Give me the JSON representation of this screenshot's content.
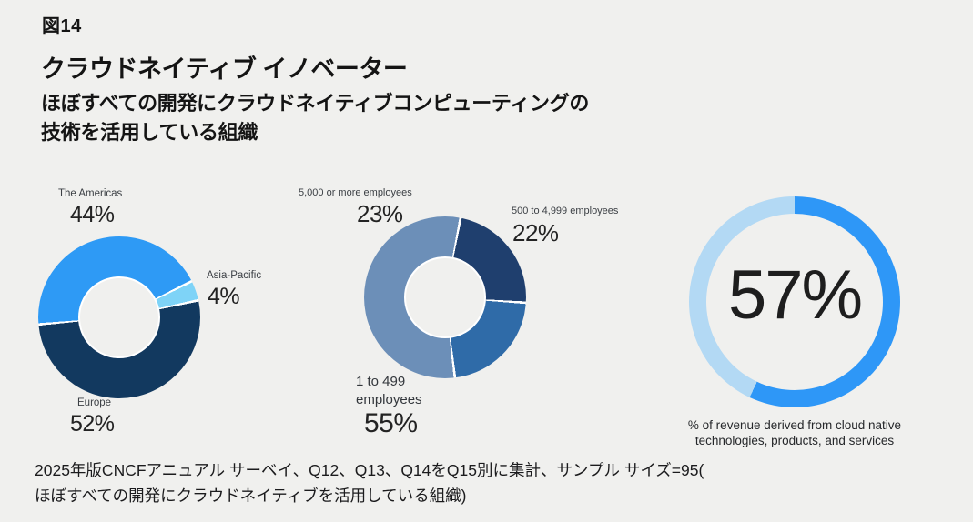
{
  "page": {
    "figure_label": "図14",
    "title": "クラウドネイティブ イノベーター",
    "subtitle_line1": "ほぼすべての開発にクラウドネイティブコンピューティングの",
    "subtitle_line2": "技術を活用している組織",
    "footnote_line1": "2025年版CNCFアニュアル サーベイ、Q12、Q13、Q14をQ15別に集計、サンプル サイズ=95(",
    "footnote_line2": "ほぼすべての開発にクラウドネイティブを活用している組織)"
  },
  "colors": {
    "background": "#F0F0EE",
    "separator_white": "#FFFFFF",
    "heading_text": "#141414",
    "label_text": "#3C4045",
    "value_text": "#232323"
  },
  "chart_data": [
    {
      "type": "pie",
      "variant": "donut",
      "labels": [
        "The Americas",
        "Asia-Pacific",
        "Europe"
      ],
      "values": [
        44,
        4,
        52
      ],
      "value_labels": [
        "44%",
        "4%",
        "52%"
      ],
      "colors": [
        "#2E9AF5",
        "#7ED3F7",
        "#12395F"
      ],
      "legend_position": "outside",
      "start_angle_deg": 265
    },
    {
      "type": "pie",
      "variant": "donut",
      "labels": [
        "5,000 or more employees",
        "500 to 4,999 employees",
        "1 to 499 employees"
      ],
      "values": [
        23,
        22,
        55
      ],
      "value_labels": [
        "23%",
        "22%",
        "55%"
      ],
      "colors": [
        "#1F3F6E",
        "#2F6BA8",
        "#6C8FB8"
      ],
      "legend_position": "outside",
      "start_angle_deg": 11,
      "draw_order": [
        "500 to 4,999 employees",
        "1 to 499 employees",
        "5,000 or more employees"
      ]
    },
    {
      "type": "pie",
      "variant": "gauge-donut",
      "labels": [
        "filled",
        "remainder"
      ],
      "values": [
        57,
        43
      ],
      "value_labels": [
        "57%"
      ],
      "center_label": "57%",
      "caption": "% of revenue derived from cloud native technologies, products, and services",
      "colors": [
        "#2E97F7",
        "#B3D9F4"
      ],
      "start_angle_deg": 0
    }
  ]
}
